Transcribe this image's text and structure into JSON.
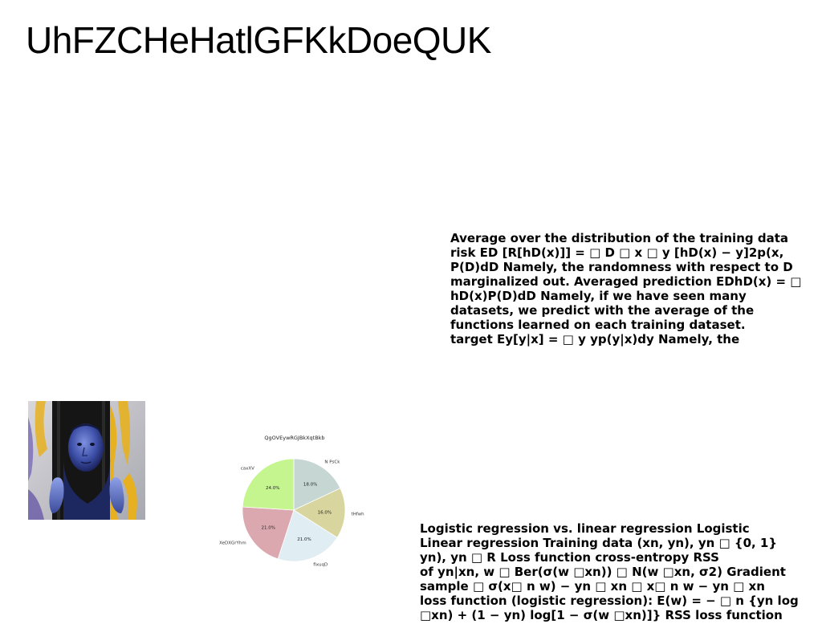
{
  "title": "UhFZCHeHatlGFKkDoeQUK",
  "text_block_1": [
    "Average over the distribution of the training data",
    "risk ED [R[hD(x)]] = □ D □ x □ y [hD(x) − y]2p(x,",
    "P(D)dD Namely, the randomness with respect to D",
    "marginalized out. Averaged prediction EDhD(x) = □",
    "hD(x)P(D)dD Namely, if we have seen many",
    "datasets, we predict with the average of the",
    "functions learned on each training dataset.",
    "target Ey[y|x] = □ y yp(y|x)dy Namely, the"
  ],
  "text_block_2": [
    "Logistic regression vs. linear regression Logistic",
    "Linear regression Training data (xn, yn), yn □ {0, 1}",
    "yn), yn □ R Loss function cross-entropy RSS",
    "of yn|xn, w □ Ber(σ(w □xn)) □ N(w □xn, σ2) Gradient",
    "sample □ σ(x□ n w) − yn □ xn □ x□ n w − yn □ xn",
    "loss function (logistic regression): E(w) = − □ n {yn log",
    "□xn) + (1 − yn) log[1 − σ(w □xn)]} RSS loss function"
  ],
  "photo": {
    "icon": "portrait-photo",
    "colors": [
      "#3a4a9a",
      "#e6b020",
      "#1a1a1a",
      "#c8c8cc"
    ]
  },
  "chart_data": {
    "type": "pie",
    "title": "QgOVEywRGJBkXqtBkb",
    "categories": [
      "N PsCk",
      "tHfwh",
      "flxuqD",
      "XeDXGrYhm",
      "caxXV"
    ],
    "values": [
      18.0,
      16.0,
      21.0,
      21.0,
      24.0
    ],
    "percent_labels": [
      "18.0%",
      "16.0%",
      "21.0%",
      "21.0%",
      "24.0%"
    ],
    "colors": [
      "#c5d6d3",
      "#d8d59f",
      "#e0edf3",
      "#dca8b0",
      "#c5f58f"
    ],
    "start_angle_deg": 90,
    "direction": "clockwise",
    "legend": "none"
  }
}
